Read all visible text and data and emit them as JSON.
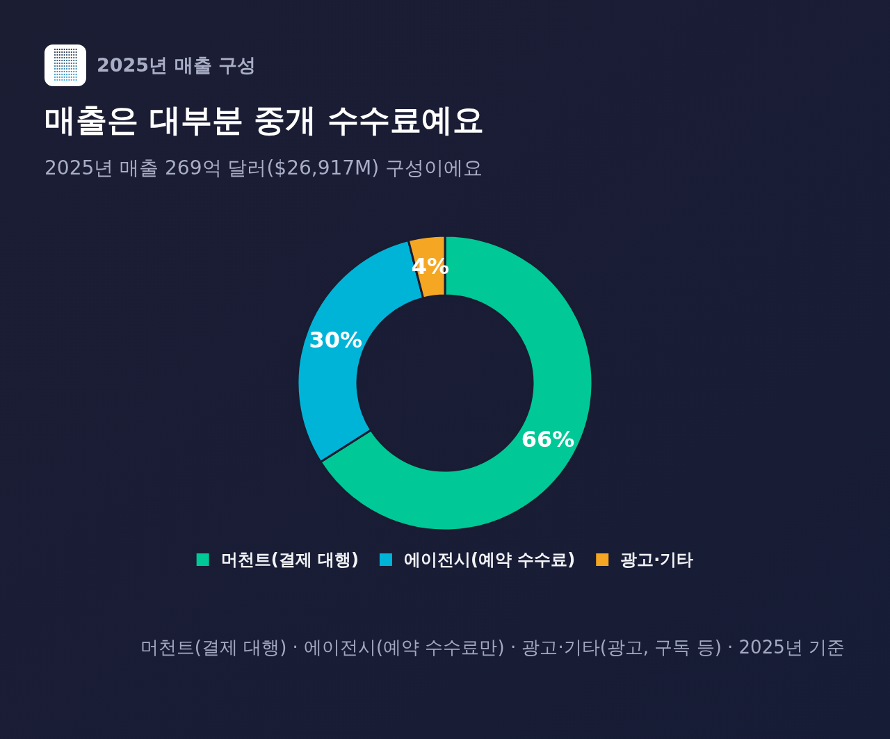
{
  "chart_data": {
    "type": "donut",
    "title": "매출은 대부분 중개 수수료예요",
    "subtitle": "2025년 매출 269억 달러($26,917M) 구성이에요",
    "annotations": [
      "2025년 매출 구성",
      "머천트(결제 대행) · 에이전시(예약 수수료만) · 광고·기타(광고, 구독 등) · 2025년 기준"
    ],
    "categories": [
      "머천트(결제 대행)",
      "에이전시(예약 수수료)",
      "광고·기타"
    ],
    "values": [
      66,
      30,
      4
    ],
    "colors": [
      "#00c896",
      "#00b4d8",
      "#f5a623"
    ],
    "value_labels": [
      "66%",
      "30%",
      "4%"
    ],
    "legend": "bottom"
  }
}
